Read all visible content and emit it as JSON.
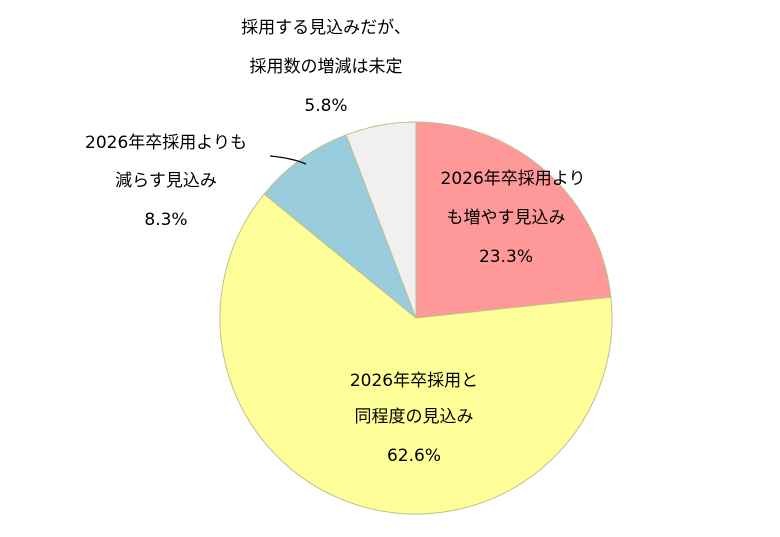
{
  "chart_data": {
    "type": "pie",
    "start_angle": "12 o'clock",
    "direction": "clockwise",
    "slices": [
      {
        "label": [
          "2026年卒採用より",
          "も増やす見込み"
        ],
        "value_text": "23.3%",
        "value": 23.3,
        "color": "#FF9999"
      },
      {
        "label": [
          "2026年卒採用と",
          "同程度の見込み"
        ],
        "value_text": "62.6%",
        "value": 62.6,
        "color": "#FFFF99"
      },
      {
        "label": [
          "2026年卒採用よりも",
          "減らす見込み"
        ],
        "value_text": "8.3%",
        "value": 8.3,
        "color": "#99CCDD"
      },
      {
        "label": [
          "採用する見込みだが、",
          "採用数の増減は未定"
        ],
        "value_text": "5.8%",
        "value": 5.8,
        "color": "#F0F0F0"
      }
    ],
    "slice_border_color": "#BFBF8F",
    "leader_line_color": "#000000"
  }
}
